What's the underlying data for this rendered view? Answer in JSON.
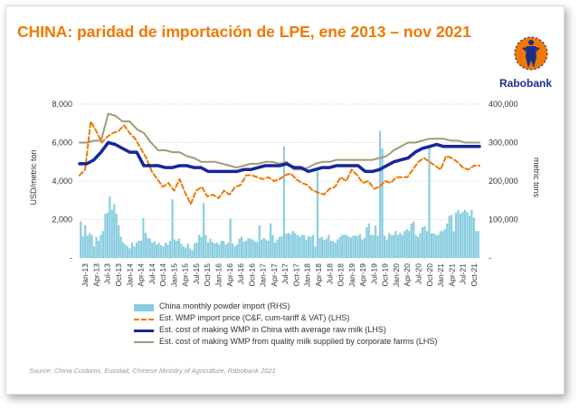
{
  "title": "CHINA: paridad de importación de LPE, ene 2013 – nov 2021",
  "logo": {
    "name": "Rabobank",
    "color": "#1a2f8a",
    "accent": "#f07800"
  },
  "source": "Source: China Customs, Eucolait, Chinese Ministry of Agriculture, Rabobank 2021",
  "colors": {
    "bars": "#89cde0",
    "import_price": "#f07800",
    "china_avg": "#16269a",
    "corporate": "#a39a76",
    "title": "#f07800"
  },
  "chart_data": {
    "type": "bar+line",
    "ylabel": "USD/metric ton",
    "y2label": "metric tons",
    "ylim": [
      0,
      8000
    ],
    "y2lim": [
      0,
      400000
    ],
    "yticks": [
      "-",
      "2,000",
      "4,000",
      "6,000",
      "8,000"
    ],
    "y2ticks": [
      "-",
      "100,000",
      "200,000",
      "300,000",
      "400,000"
    ],
    "xticks": [
      "Jan-13",
      "Apr-13",
      "Jul-13",
      "Oct-13",
      "Jan-14",
      "Apr-14",
      "Jul-14",
      "Oct-14",
      "Jan-15",
      "Apr-15",
      "Jul-15",
      "Oct-15",
      "Jan-16",
      "Apr-16",
      "Jul-16",
      "Oct-16",
      "Jan-17",
      "Apr-17",
      "Jul-17",
      "Oct-17",
      "Jan-18",
      "Apr-18",
      "Jul-18",
      "Oct-18",
      "Jan-19",
      "Apr-19",
      "Jul-19",
      "Oct-19",
      "Jan-20",
      "Apr-20",
      "Jul-20",
      "Oct-20",
      "Jan-21",
      "Apr-21",
      "Jul-21",
      "Oct-21"
    ],
    "grid": true,
    "legend_position": "bottom",
    "series": [
      {
        "name": "China monthly powder import (RHS)",
        "type": "bar",
        "axis": "right",
        "values": [
          95000,
          56000,
          85000,
          58000,
          65000,
          60000,
          30000,
          55000,
          45000,
          60000,
          70000,
          115000,
          118000,
          160000,
          125000,
          140000,
          115000,
          85000,
          55000,
          40000,
          35000,
          30000,
          25000,
          40000,
          30000,
          40000,
          45000,
          45000,
          104000,
          65000,
          52000,
          50000,
          40000,
          44000,
          35000,
          40000,
          33000,
          30000,
          40000,
          35000,
          45000,
          153000,
          48000,
          45000,
          50000,
          37000,
          30000,
          27000,
          38000,
          25000,
          20000,
          38000,
          40000,
          60000,
          55000,
          143000,
          60000,
          40000,
          50000,
          42000,
          38000,
          40000,
          35000,
          45000,
          44000,
          35000,
          40000,
          102000,
          38000,
          30000,
          35000,
          50000,
          55000,
          42000,
          45000,
          52000,
          50000,
          48000,
          43000,
          42000,
          85000,
          48000,
          52000,
          48000,
          45000,
          90000,
          60000,
          40000,
          48000,
          55000,
          57000,
          290000,
          63000,
          65000,
          62000,
          70000,
          65000,
          60000,
          55000,
          60000,
          60000,
          47000,
          57000,
          55000,
          60000,
          30000,
          225000,
          52000,
          55000,
          47000,
          50000,
          60000,
          45000,
          44000,
          40000,
          48000,
          55000,
          60000,
          60000,
          60000,
          55000,
          53000,
          58000,
          58000,
          57000,
          62000,
          48000,
          52000,
          80000,
          90000,
          60000,
          60000,
          85000,
          58000,
          330000,
          285000,
          58000,
          48000,
          65000,
          60000,
          60000,
          70000,
          60000,
          65000,
          60000,
          70000,
          75000,
          70000,
          90000,
          95000,
          60000,
          55000,
          65000,
          80000,
          82000,
          70000,
          290000,
          64000,
          64000,
          60000,
          60000,
          70000,
          70000,
          75000,
          90000,
          110000,
          112000,
          70000,
          118000,
          125000,
          115000,
          120000,
          125000,
          120000,
          110000,
          125000,
          105000,
          70000,
          70000
        ]
      },
      {
        "name": "Est. WMP import price (C&F, cum-tariff & VAT) (LHS)",
        "type": "line",
        "style": "dashed",
        "axis": "left",
        "values": [
          4300,
          4600,
          7100,
          6600,
          6000,
          6300,
          6500,
          6600,
          6900,
          6500,
          6200,
          5700,
          5200,
          4500,
          4100,
          3700,
          3900,
          3500,
          4100,
          3400,
          2800,
          3500,
          3700,
          3200,
          3300,
          3100,
          3500,
          3300,
          3700,
          3800,
          4300,
          4300,
          4200,
          4100,
          4200,
          4000,
          4100,
          4300,
          4400,
          4100,
          3900,
          3800,
          3500,
          3400,
          3300,
          3600,
          3700,
          4200,
          4000,
          4600,
          4300,
          3900,
          4000,
          3600,
          3700,
          4000,
          3900,
          4200,
          4200,
          4200,
          4600,
          5000,
          5200,
          5000,
          4800,
          4600,
          5300,
          5200,
          5000,
          4700,
          4600,
          4800,
          4800
        ]
      },
      {
        "name": "Est. cost of making WMP in China with average raw milk (LHS)",
        "type": "line",
        "axis": "left",
        "values": [
          4900,
          4900,
          5100,
          5500,
          6000,
          5900,
          5700,
          5500,
          5500,
          4800,
          4800,
          4800,
          4700,
          4700,
          4800,
          4800,
          4700,
          4700,
          4500,
          4500,
          4500,
          4500,
          4500,
          4600,
          4600,
          4700,
          4800,
          4800,
          4800,
          4900,
          4700,
          4700,
          4500,
          4600,
          4700,
          4700,
          4800,
          4800,
          4800,
          4800,
          4500,
          4500,
          4600,
          4800,
          5000,
          5100,
          5200,
          5500,
          5700,
          5800,
          5900,
          5800,
          5800,
          5800,
          5800,
          5800,
          5800
        ]
      },
      {
        "name": "Est. cost of making WMP from quality milk supplied by corporate farms (LHS)",
        "type": "line",
        "axis": "left",
        "values": [
          6000,
          6000,
          6100,
          6100,
          7500,
          7400,
          7100,
          7100,
          6700,
          6500,
          6000,
          5600,
          5600,
          5500,
          5500,
          5300,
          5200,
          5000,
          5000,
          5000,
          4900,
          4800,
          4700,
          4800,
          4900,
          4900,
          5000,
          5000,
          4900,
          5000,
          4600,
          4600,
          4700,
          4900,
          5000,
          5000,
          5100,
          5100,
          5100,
          5100,
          5100,
          5100,
          5200,
          5300,
          5600,
          5800,
          6000,
          6000,
          6100,
          6200,
          6200,
          6200,
          6100,
          6100,
          6000,
          6000,
          6000
        ]
      }
    ]
  }
}
